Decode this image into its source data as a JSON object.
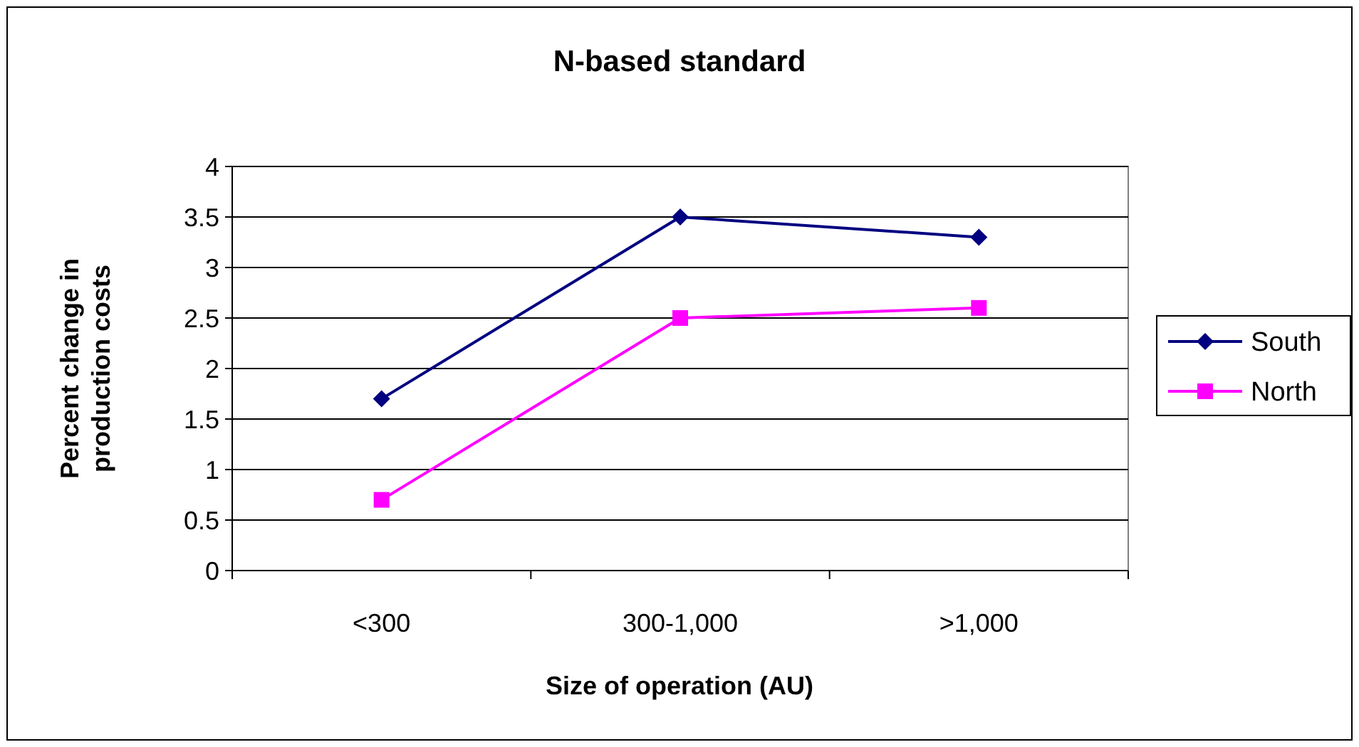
{
  "chart_data": {
    "type": "line",
    "title": "N-based standard",
    "xlabel": "Size of operation (AU)",
    "ylabel": "Percent change in production costs",
    "categories": [
      "<300",
      "300-1,000",
      ">1,000"
    ],
    "series": [
      {
        "name": "South",
        "color": "#000080",
        "marker": "diamond",
        "values": [
          1.7,
          3.5,
          3.3
        ]
      },
      {
        "name": "North",
        "color": "#ff00ff",
        "marker": "square",
        "values": [
          0.7,
          2.5,
          2.6
        ]
      }
    ],
    "ylim": [
      0,
      4
    ],
    "yticks": [
      0,
      0.5,
      1,
      1.5,
      2,
      2.5,
      3,
      3.5,
      4
    ],
    "grid": "y",
    "legend": "right",
    "line_style": "solid"
  }
}
